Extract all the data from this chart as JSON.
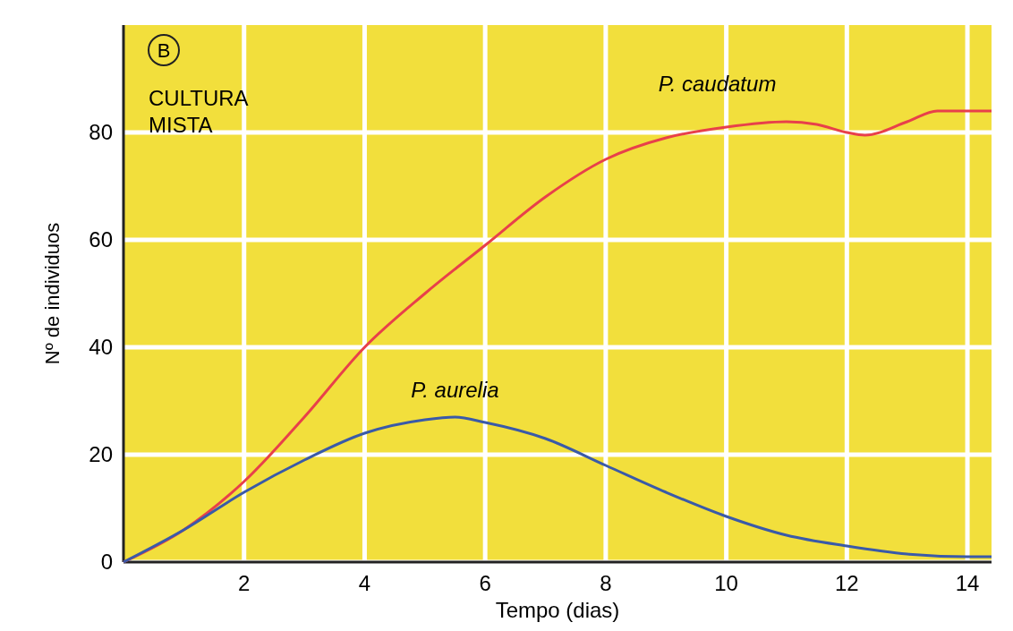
{
  "chart_data": {
    "type": "line",
    "xlabel": "Tempo (dias)",
    "ylabel": "Nº de individuos",
    "annotations": [
      "B",
      "CULTURA MISTA"
    ],
    "xlim": [
      0,
      14.4
    ],
    "ylim": [
      0,
      100
    ],
    "xticks": [
      2,
      4,
      6,
      8,
      10,
      12,
      14
    ],
    "yticks": [
      0,
      20,
      40,
      60,
      80
    ],
    "grid": true,
    "series": [
      {
        "name": "P. caudatum",
        "color": "#e8404a",
        "x": [
          0,
          1,
          2,
          3,
          4,
          5,
          6,
          7,
          8,
          9,
          10,
          11,
          11.5,
          12,
          12.3,
          13,
          13.5,
          14,
          14.4
        ],
        "values": [
          0,
          6,
          15,
          27,
          40,
          50,
          59,
          68,
          75,
          79,
          81,
          82,
          81.5,
          80,
          79.5,
          82,
          84,
          84,
          84
        ]
      },
      {
        "name": "P. aurelia",
        "color": "#3a5aa8",
        "x": [
          0,
          1,
          2,
          3,
          4,
          5,
          5.5,
          6,
          7,
          8,
          9,
          10,
          11,
          12,
          13,
          14,
          14.4
        ],
        "values": [
          0,
          6,
          13,
          19,
          24,
          26.5,
          27,
          26,
          23,
          18,
          13,
          8.5,
          5,
          3,
          1.5,
          1,
          1
        ]
      }
    ]
  }
}
